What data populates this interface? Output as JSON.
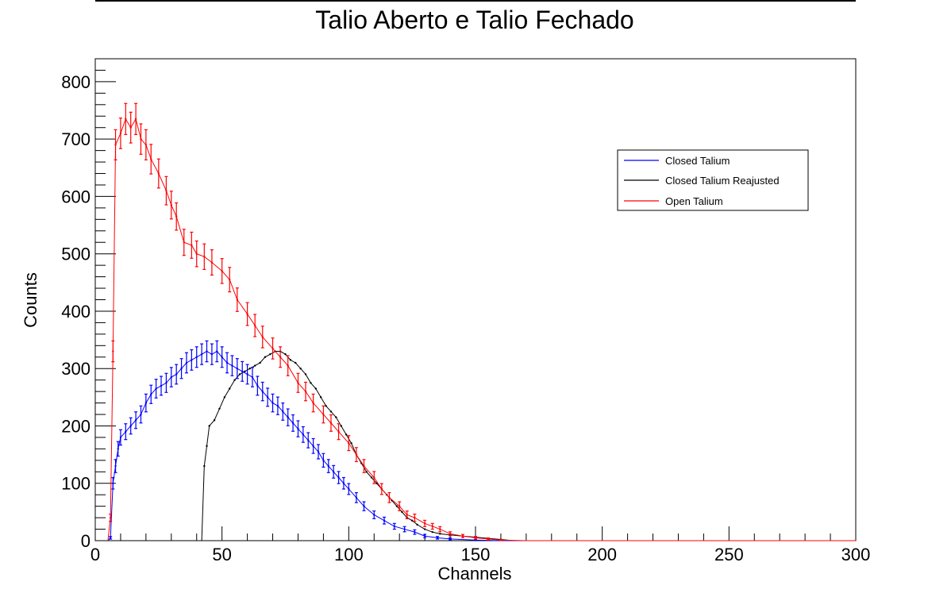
{
  "chart_data": {
    "type": "line",
    "title": "Talio Aberto e Talio Fechado",
    "xlabel": "Channels",
    "ylabel": "Counts",
    "xlim": [
      0,
      300
    ],
    "ylim": [
      0,
      840
    ],
    "x_ticks": [
      0,
      50,
      100,
      150,
      200,
      250,
      300
    ],
    "y_ticks": [
      0,
      100,
      200,
      300,
      400,
      500,
      600,
      700,
      800
    ],
    "grid": false,
    "legend_placement": "top-right",
    "series": [
      {
        "name": "Open Talium",
        "color": "#ff0000",
        "error_bars": true,
        "points": [
          [
            5,
            0
          ],
          [
            6,
            40
          ],
          [
            7,
            330
          ],
          [
            8,
            690
          ],
          [
            10,
            710
          ],
          [
            12,
            735
          ],
          [
            14,
            720
          ],
          [
            16,
            735
          ],
          [
            18,
            700
          ],
          [
            20,
            690
          ],
          [
            22,
            665
          ],
          [
            25,
            640
          ],
          [
            28,
            610
          ],
          [
            30,
            585
          ],
          [
            32,
            565
          ],
          [
            35,
            520
          ],
          [
            38,
            515
          ],
          [
            40,
            500
          ],
          [
            43,
            495
          ],
          [
            46,
            485
          ],
          [
            50,
            470
          ],
          [
            53,
            455
          ],
          [
            56,
            420
          ],
          [
            60,
            395
          ],
          [
            63,
            375
          ],
          [
            66,
            355
          ],
          [
            70,
            335
          ],
          [
            73,
            320
          ],
          [
            76,
            305
          ],
          [
            80,
            275
          ],
          [
            83,
            260
          ],
          [
            86,
            240
          ],
          [
            90,
            220
          ],
          [
            93,
            205
          ],
          [
            96,
            190
          ],
          [
            100,
            170
          ],
          [
            103,
            150
          ],
          [
            106,
            130
          ],
          [
            110,
            110
          ],
          [
            113,
            90
          ],
          [
            116,
            75
          ],
          [
            120,
            60
          ],
          [
            123,
            45
          ],
          [
            126,
            40
          ],
          [
            130,
            30
          ],
          [
            133,
            25
          ],
          [
            136,
            20
          ],
          [
            140,
            12
          ],
          [
            145,
            8
          ],
          [
            150,
            5
          ],
          [
            155,
            3
          ],
          [
            160,
            1
          ],
          [
            170,
            0
          ],
          [
            190,
            0
          ],
          [
            300,
            0
          ]
        ]
      },
      {
        "name": "Closed Talium",
        "color": "#0000ff",
        "error_bars": true,
        "points": [
          [
            5,
            0
          ],
          [
            6,
            5
          ],
          [
            7,
            100
          ],
          [
            8,
            130
          ],
          [
            9,
            160
          ],
          [
            10,
            180
          ],
          [
            12,
            190
          ],
          [
            14,
            200
          ],
          [
            16,
            210
          ],
          [
            18,
            220
          ],
          [
            20,
            240
          ],
          [
            22,
            255
          ],
          [
            24,
            265
          ],
          [
            26,
            270
          ],
          [
            28,
            275
          ],
          [
            30,
            285
          ],
          [
            32,
            290
          ],
          [
            34,
            300
          ],
          [
            36,
            310
          ],
          [
            38,
            315
          ],
          [
            40,
            320
          ],
          [
            42,
            325
          ],
          [
            44,
            330
          ],
          [
            46,
            325
          ],
          [
            48,
            330
          ],
          [
            50,
            320
          ],
          [
            52,
            310
          ],
          [
            54,
            305
          ],
          [
            56,
            300
          ],
          [
            58,
            295
          ],
          [
            60,
            290
          ],
          [
            62,
            285
          ],
          [
            64,
            270
          ],
          [
            66,
            260
          ],
          [
            68,
            250
          ],
          [
            70,
            240
          ],
          [
            72,
            235
          ],
          [
            74,
            225
          ],
          [
            76,
            215
          ],
          [
            78,
            205
          ],
          [
            80,
            195
          ],
          [
            82,
            185
          ],
          [
            84,
            175
          ],
          [
            86,
            165
          ],
          [
            88,
            155
          ],
          [
            90,
            140
          ],
          [
            92,
            130
          ],
          [
            94,
            120
          ],
          [
            96,
            110
          ],
          [
            98,
            100
          ],
          [
            100,
            90
          ],
          [
            103,
            75
          ],
          [
            106,
            60
          ],
          [
            110,
            45
          ],
          [
            114,
            35
          ],
          [
            118,
            25
          ],
          [
            122,
            20
          ],
          [
            126,
            15
          ],
          [
            130,
            8
          ],
          [
            135,
            5
          ],
          [
            140,
            3
          ],
          [
            150,
            1
          ],
          [
            160,
            0
          ],
          [
            300,
            0
          ]
        ]
      },
      {
        "name": "Closed Talium Reajusted",
        "color": "#000000",
        "error_bars": false,
        "points": [
          [
            42,
            0
          ],
          [
            43,
            130
          ],
          [
            44,
            165
          ],
          [
            45,
            200
          ],
          [
            47,
            210
          ],
          [
            49,
            230
          ],
          [
            51,
            250
          ],
          [
            53,
            265
          ],
          [
            55,
            280
          ],
          [
            57,
            290
          ],
          [
            59,
            295
          ],
          [
            61,
            300
          ],
          [
            63,
            305
          ],
          [
            65,
            310
          ],
          [
            67,
            320
          ],
          [
            69,
            325
          ],
          [
            71,
            330
          ],
          [
            73,
            330
          ],
          [
            75,
            325
          ],
          [
            77,
            315
          ],
          [
            79,
            310
          ],
          [
            81,
            300
          ],
          [
            83,
            290
          ],
          [
            85,
            275
          ],
          [
            87,
            265
          ],
          [
            89,
            250
          ],
          [
            91,
            235
          ],
          [
            93,
            225
          ],
          [
            95,
            215
          ],
          [
            97,
            200
          ],
          [
            99,
            185
          ],
          [
            101,
            170
          ],
          [
            103,
            150
          ],
          [
            105,
            135
          ],
          [
            107,
            120
          ],
          [
            109,
            110
          ],
          [
            111,
            100
          ],
          [
            113,
            90
          ],
          [
            115,
            80
          ],
          [
            117,
            70
          ],
          [
            119,
            60
          ],
          [
            121,
            50
          ],
          [
            123,
            40
          ],
          [
            125,
            35
          ],
          [
            127,
            28
          ],
          [
            130,
            20
          ],
          [
            133,
            15
          ],
          [
            136,
            12
          ],
          [
            140,
            10
          ],
          [
            145,
            8
          ],
          [
            150,
            6
          ],
          [
            155,
            4
          ],
          [
            160,
            2
          ],
          [
            165,
            0
          ],
          [
            300,
            0
          ]
        ]
      }
    ]
  }
}
